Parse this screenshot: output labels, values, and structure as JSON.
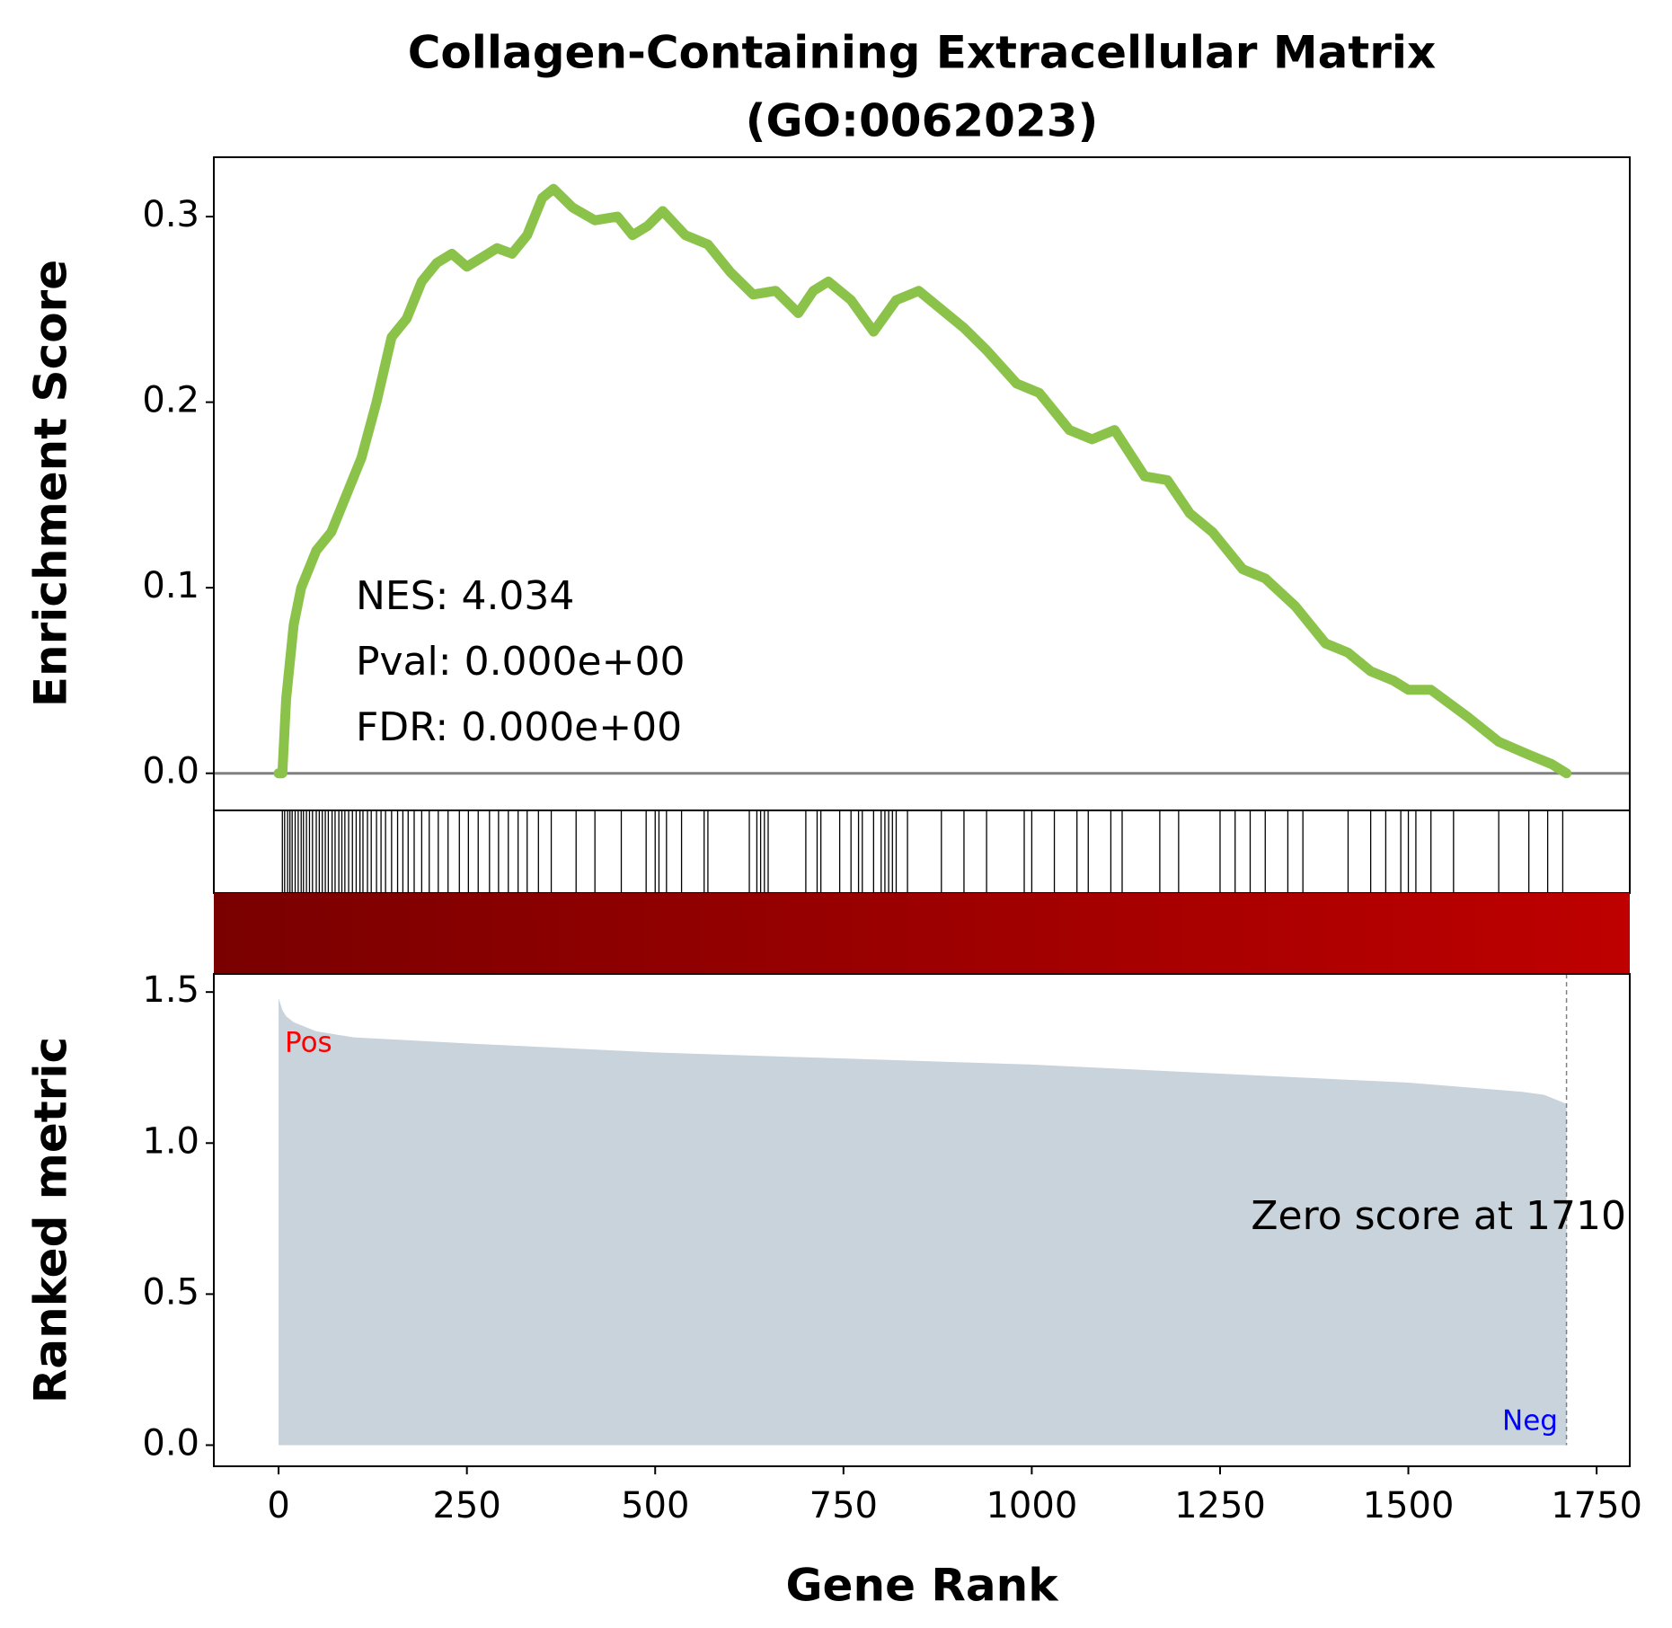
{
  "chart_data": [
    {
      "type": "line",
      "title": [
        "Collagen-Containing Extracellular Matrix",
        "(GO:0062023)"
      ],
      "ylabel": "Enrichment Score",
      "x": [
        0,
        5,
        10,
        20,
        30,
        50,
        70,
        90,
        110,
        130,
        150,
        170,
        190,
        210,
        230,
        250,
        270,
        290,
        310,
        330,
        350,
        365,
        390,
        420,
        450,
        470,
        490,
        510,
        540,
        570,
        600,
        630,
        660,
        690,
        710,
        730,
        760,
        790,
        820,
        850,
        880,
        910,
        940,
        980,
        1010,
        1050,
        1080,
        1110,
        1150,
        1180,
        1210,
        1240,
        1280,
        1310,
        1350,
        1390,
        1420,
        1450,
        1480,
        1500,
        1530,
        1580,
        1620,
        1660,
        1690,
        1710
      ],
      "values": [
        0,
        0,
        0.04,
        0.08,
        0.1,
        0.12,
        0.13,
        0.15,
        0.17,
        0.2,
        0.235,
        0.245,
        0.265,
        0.275,
        0.28,
        0.273,
        0.278,
        0.283,
        0.28,
        0.29,
        0.31,
        0.315,
        0.305,
        0.298,
        0.3,
        0.29,
        0.295,
        0.303,
        0.29,
        0.285,
        0.27,
        0.258,
        0.26,
        0.248,
        0.26,
        0.265,
        0.255,
        0.238,
        0.255,
        0.26,
        0.25,
        0.24,
        0.228,
        0.21,
        0.205,
        0.185,
        0.18,
        0.185,
        0.16,
        0.158,
        0.14,
        0.13,
        0.11,
        0.105,
        0.09,
        0.07,
        0.065,
        0.055,
        0.05,
        0.045,
        0.045,
        0.03,
        0.017,
        0.01,
        0.005,
        0
      ],
      "color": "#8bc34a",
      "xlim": [
        -86,
        1794
      ],
      "ylim": [
        -0.02,
        0.332
      ],
      "yticks": [
        {
          "value": 0,
          "label": "0.0"
        },
        0.1,
        0.2,
        0.3
      ],
      "annotations": [
        "NES: 4.034",
        "Pval: 0.000e+00",
        "FDR: 0.000e+00"
      ]
    },
    {
      "type": "rug",
      "x": [
        5,
        8,
        12,
        15,
        18,
        22,
        26,
        30,
        33,
        37,
        41,
        45,
        50,
        54,
        58,
        62,
        66,
        71,
        75,
        80,
        84,
        88,
        93,
        98,
        103,
        108,
        112,
        118,
        123,
        130,
        136,
        142,
        150,
        158,
        165,
        172,
        180,
        190,
        200,
        212,
        225,
        240,
        252,
        265,
        280,
        292,
        305,
        318,
        330,
        345,
        362,
        395,
        420,
        455,
        488,
        500,
        505,
        515,
        535,
        565,
        570,
        625,
        635,
        640,
        645,
        650,
        700,
        715,
        720,
        745,
        760,
        770,
        775,
        790,
        800,
        805,
        810,
        815,
        820,
        835,
        880,
        910,
        940,
        990,
        1000,
        1030,
        1060,
        1075,
        1105,
        1120,
        1170,
        1195,
        1250,
        1270,
        1290,
        1310,
        1340,
        1360,
        1420,
        1450,
        1470,
        1490,
        1500,
        1510,
        1530,
        1560,
        1620,
        1660,
        1685,
        1705
      ],
      "xlim": [
        -86,
        1794
      ]
    },
    {
      "type": "area",
      "ylabel": "Ranked metric",
      "xlabel": "Gene Rank",
      "x": [
        0,
        5,
        10,
        20,
        50,
        100,
        250,
        500,
        750,
        1000,
        1250,
        1500,
        1600,
        1650,
        1680,
        1700,
        1710
      ],
      "values": [
        1.48,
        1.44,
        1.42,
        1.4,
        1.37,
        1.35,
        1.33,
        1.3,
        1.28,
        1.26,
        1.23,
        1.2,
        1.18,
        1.17,
        1.16,
        1.14,
        1.13
      ],
      "color": "#c8d3dc",
      "colorbar": [
        "#7a0000",
        "#be0000"
      ],
      "xlim": [
        -86,
        1794
      ],
      "ylim": [
        -0.07,
        1.56
      ],
      "xticks": [
        0,
        250,
        500,
        750,
        1000,
        1250,
        1500,
        1750
      ],
      "yticks": [
        {
          "value": 0,
          "label": "0.0"
        },
        0.5,
        {
          "value": 1,
          "label": "1.0"
        },
        1.5
      ],
      "pos_label": "Pos",
      "neg_label": "Neg",
      "zero_score_text": "Zero score at 1710",
      "zero_score_at": 1710
    }
  ]
}
